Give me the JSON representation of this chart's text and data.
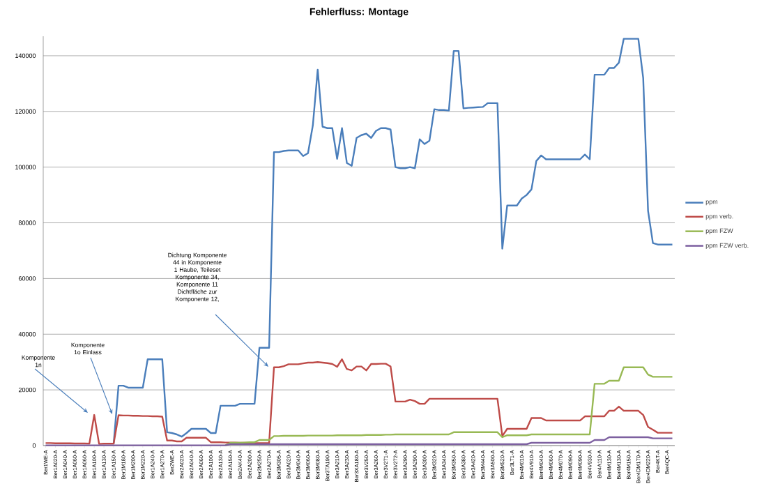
{
  "chart_data": {
    "type": "line",
    "title": "Fehlerfluss: Montage",
    "categories": [
      "Ber1WE-A",
      null,
      "Ber1A020-A",
      null,
      "Ber1A040-A",
      null,
      "Ber1A060-A",
      null,
      "Ber1A060-A",
      null,
      "Ber1A100-A",
      null,
      "Ber1A130-A",
      null,
      "Ber1A150-A",
      null,
      "Ber1M180-A",
      null,
      "Ber1M200-A",
      null,
      "Ber1M220-A",
      null,
      "Ber1A240-A",
      null,
      "Ber1A270-A",
      null,
      "Ber2WE-A",
      null,
      "Ber2A020-A",
      null,
      "Ber2A040-A",
      null,
      "Ber2A060-A",
      null,
      "Ber2A100-A",
      null,
      "Ber2A130-A",
      null,
      "Ber2A150-A",
      null,
      "Ber2AK40-A",
      null,
      "Ber2A200-A",
      null,
      "Ber2M250-A",
      null,
      "Ber2A270-A",
      null,
      "Ber3M305-A",
      null,
      "Ber3A020-A",
      null,
      "Ber3M040-A",
      null,
      "Ber3M060-A",
      null,
      "Ber3M080-A",
      null,
      "Ber3TA190-A",
      null,
      "Ber3A210-A",
      null,
      "Ber3A230-A",
      null,
      "Ber3XA180-A",
      null,
      "Ber3V250-A",
      null,
      "Ber3A260-A",
      null,
      "Ber3V271-A",
      null,
      "Ber3V272-A",
      null,
      "Ber3A290-A",
      null,
      "Ber3A290-A",
      null,
      "Ber3A300-A",
      null,
      "Ber3M320-A",
      null,
      "Ber3A340-A",
      null,
      "Ber3M350-A",
      null,
      "Ber3A380-A",
      null,
      "Ber3A420-A",
      null,
      "Ber3M440-A",
      null,
      "Ber3A500-A",
      null,
      "Ber3M520-A",
      null,
      "Ber3LT1-A",
      null,
      "Ber4M010-A",
      null,
      "Ber4V910-A",
      null,
      "Ber4M040-A",
      null,
      "Ber4M060-A",
      null,
      "Ber4M070-A",
      null,
      "Ber4M090-A",
      null,
      "Ber4M090-A",
      null,
      "Ber4V930-A",
      null,
      "Ber4A110-A",
      null,
      "Ber4M130-A",
      null,
      "Ber4M130-A",
      null,
      "Ber4M150-A",
      null,
      "Ber4DM170-A",
      null,
      "Ber4DM220-A",
      null,
      "Ber4KT-A",
      null,
      "Ber4QC-A",
      null
    ],
    "series": [
      {
        "name": "ppm",
        "color": "#4a7ebb",
        "values": [
          null,
          null,
          null,
          null,
          null,
          null,
          null,
          null,
          null,
          null,
          null,
          null,
          null,
          null,
          700,
          21500,
          21500,
          20800,
          20800,
          20800,
          20800,
          31000,
          31000,
          31000,
          31000,
          4800,
          4500,
          4000,
          3200,
          4500,
          6000,
          6000,
          6000,
          6000,
          4500,
          4500,
          14300,
          14300,
          14300,
          14300,
          15000,
          15000,
          15000,
          15000,
          35100,
          35100,
          35100,
          105400,
          105400,
          105800,
          106000,
          106000,
          106000,
          104000,
          105000,
          115000,
          135000,
          114500,
          114000,
          114000,
          103000,
          114000,
          101500,
          100500,
          110500,
          111500,
          112000,
          110500,
          113000,
          114000,
          114000,
          113500,
          100000,
          99600,
          99600,
          100000,
          99600,
          110000,
          108300,
          109500,
          120800,
          120500,
          120500,
          120300,
          141700,
          141700,
          121100,
          121300,
          121400,
          121500,
          121600,
          123000,
          123000,
          123000,
          70700,
          86200,
          86200,
          86200,
          88700,
          90000,
          92000,
          102200,
          104200,
          102800,
          102800,
          102800,
          102800,
          102800,
          102800,
          102800,
          102800,
          104500,
          102800,
          133200,
          133200,
          133200,
          135600,
          135600,
          137500,
          146100,
          146100,
          146100,
          146100,
          132000,
          84300,
          72700,
          72200,
          72200,
          72200,
          72200
        ]
      },
      {
        "name": "ppm verb.",
        "color": "#be4b48",
        "values": [
          900,
          900,
          800,
          800,
          800,
          800,
          750,
          750,
          750,
          700,
          11000,
          600,
          700,
          700,
          700,
          10900,
          10800,
          10800,
          10700,
          10700,
          10600,
          10600,
          10500,
          10500,
          10400,
          1800,
          1800,
          1500,
          1500,
          2800,
          2800,
          2800,
          2800,
          2800,
          1200,
          1200,
          1200,
          1100,
          1100,
          1100,
          1000,
          1000,
          1000,
          900,
          900,
          900,
          900,
          28100,
          28100,
          28500,
          29200,
          29200,
          29200,
          29500,
          29800,
          29800,
          30000,
          29800,
          29600,
          29300,
          28300,
          31000,
          27500,
          27000,
          28400,
          28400,
          27000,
          29300,
          29300,
          29400,
          29400,
          28400,
          15800,
          15800,
          15800,
          16500,
          16000,
          15000,
          15000,
          16800,
          16800,
          16800,
          16800,
          16800,
          16800,
          16800,
          16800,
          16800,
          16800,
          16800,
          16800,
          16800,
          16800,
          16800,
          3400,
          6000,
          6000,
          6000,
          6000,
          6000,
          9900,
          9900,
          9900,
          9000,
          9000,
          9000,
          9000,
          9000,
          9000,
          9000,
          9000,
          10500,
          10500,
          10500,
          10500,
          10500,
          12500,
          12500,
          14000,
          12500,
          12500,
          12500,
          12500,
          11000,
          6700,
          5700,
          4600,
          4600,
          4600,
          4600
        ]
      },
      {
        "name": "ppm FZW",
        "color": "#98b954",
        "values": [
          null,
          null,
          null,
          null,
          null,
          null,
          null,
          null,
          null,
          null,
          null,
          null,
          null,
          null,
          null,
          null,
          null,
          null,
          null,
          null,
          null,
          null,
          null,
          null,
          null,
          null,
          null,
          null,
          null,
          null,
          null,
          null,
          null,
          null,
          null,
          null,
          null,
          100,
          1000,
          1000,
          1000,
          1100,
          1200,
          1200,
          2000,
          2000,
          2000,
          3400,
          3400,
          3500,
          3500,
          3500,
          3500,
          3500,
          3600,
          3600,
          3600,
          3600,
          3600,
          3600,
          3700,
          3700,
          3700,
          3700,
          3700,
          3700,
          3800,
          3800,
          3800,
          3800,
          3900,
          3900,
          4000,
          4000,
          4000,
          4000,
          4000,
          4000,
          4000,
          4000,
          4000,
          4000,
          4000,
          4000,
          4800,
          4800,
          4800,
          4800,
          4800,
          4800,
          4800,
          4800,
          4800,
          4800,
          3000,
          3700,
          3700,
          3700,
          3700,
          3700,
          4000,
          4000,
          4000,
          4000,
          4000,
          4000,
          4000,
          4000,
          4000,
          4000,
          4000,
          4000,
          4000,
          22200,
          22200,
          22200,
          23300,
          23300,
          23300,
          28100,
          28100,
          28100,
          28100,
          28100,
          25500,
          24700,
          24700,
          24700,
          24700,
          24700
        ]
      },
      {
        "name": "ppm FZW verb.",
        "color": "#7d60a0",
        "values": [
          100,
          100,
          100,
          100,
          100,
          100,
          100,
          100,
          100,
          100,
          100,
          100,
          100,
          100,
          100,
          100,
          100,
          100,
          100,
          100,
          100,
          100,
          100,
          100,
          100,
          100,
          100,
          100,
          100,
          100,
          100,
          100,
          100,
          100,
          100,
          100,
          100,
          100,
          500,
          500,
          500,
          500,
          500,
          500,
          500,
          500,
          500,
          500,
          500,
          500,
          500,
          500,
          500,
          500,
          500,
          500,
          500,
          500,
          500,
          500,
          500,
          500,
          500,
          500,
          500,
          500,
          500,
          500,
          500,
          500,
          500,
          500,
          500,
          500,
          500,
          500,
          500,
          500,
          500,
          500,
          500,
          500,
          500,
          500,
          500,
          500,
          500,
          500,
          500,
          500,
          500,
          500,
          500,
          500,
          500,
          500,
          500,
          500,
          500,
          500,
          1000,
          1000,
          1000,
          1000,
          1000,
          1000,
          1000,
          1000,
          1000,
          1000,
          1000,
          1000,
          1000,
          2000,
          2000,
          2000,
          3000,
          3000,
          3000,
          3000,
          3000,
          3000,
          3000,
          3000,
          3000,
          2600,
          2600,
          2600,
          2600,
          2600
        ]
      }
    ],
    "ylim": [
      0,
      147000
    ],
    "yticks": [
      0,
      20000,
      40000,
      60000,
      80000,
      100000,
      120000,
      140000
    ],
    "grid": "y",
    "legend": "right",
    "annotations": [
      "Komponente 1n",
      "Komponente 1o Einlass",
      "Dichtung Komponente 44 in Komponente 1 Haube, Teileset Komponente 34, Komponente 11 Dichtfläche zur Komponente 12,"
    ]
  }
}
